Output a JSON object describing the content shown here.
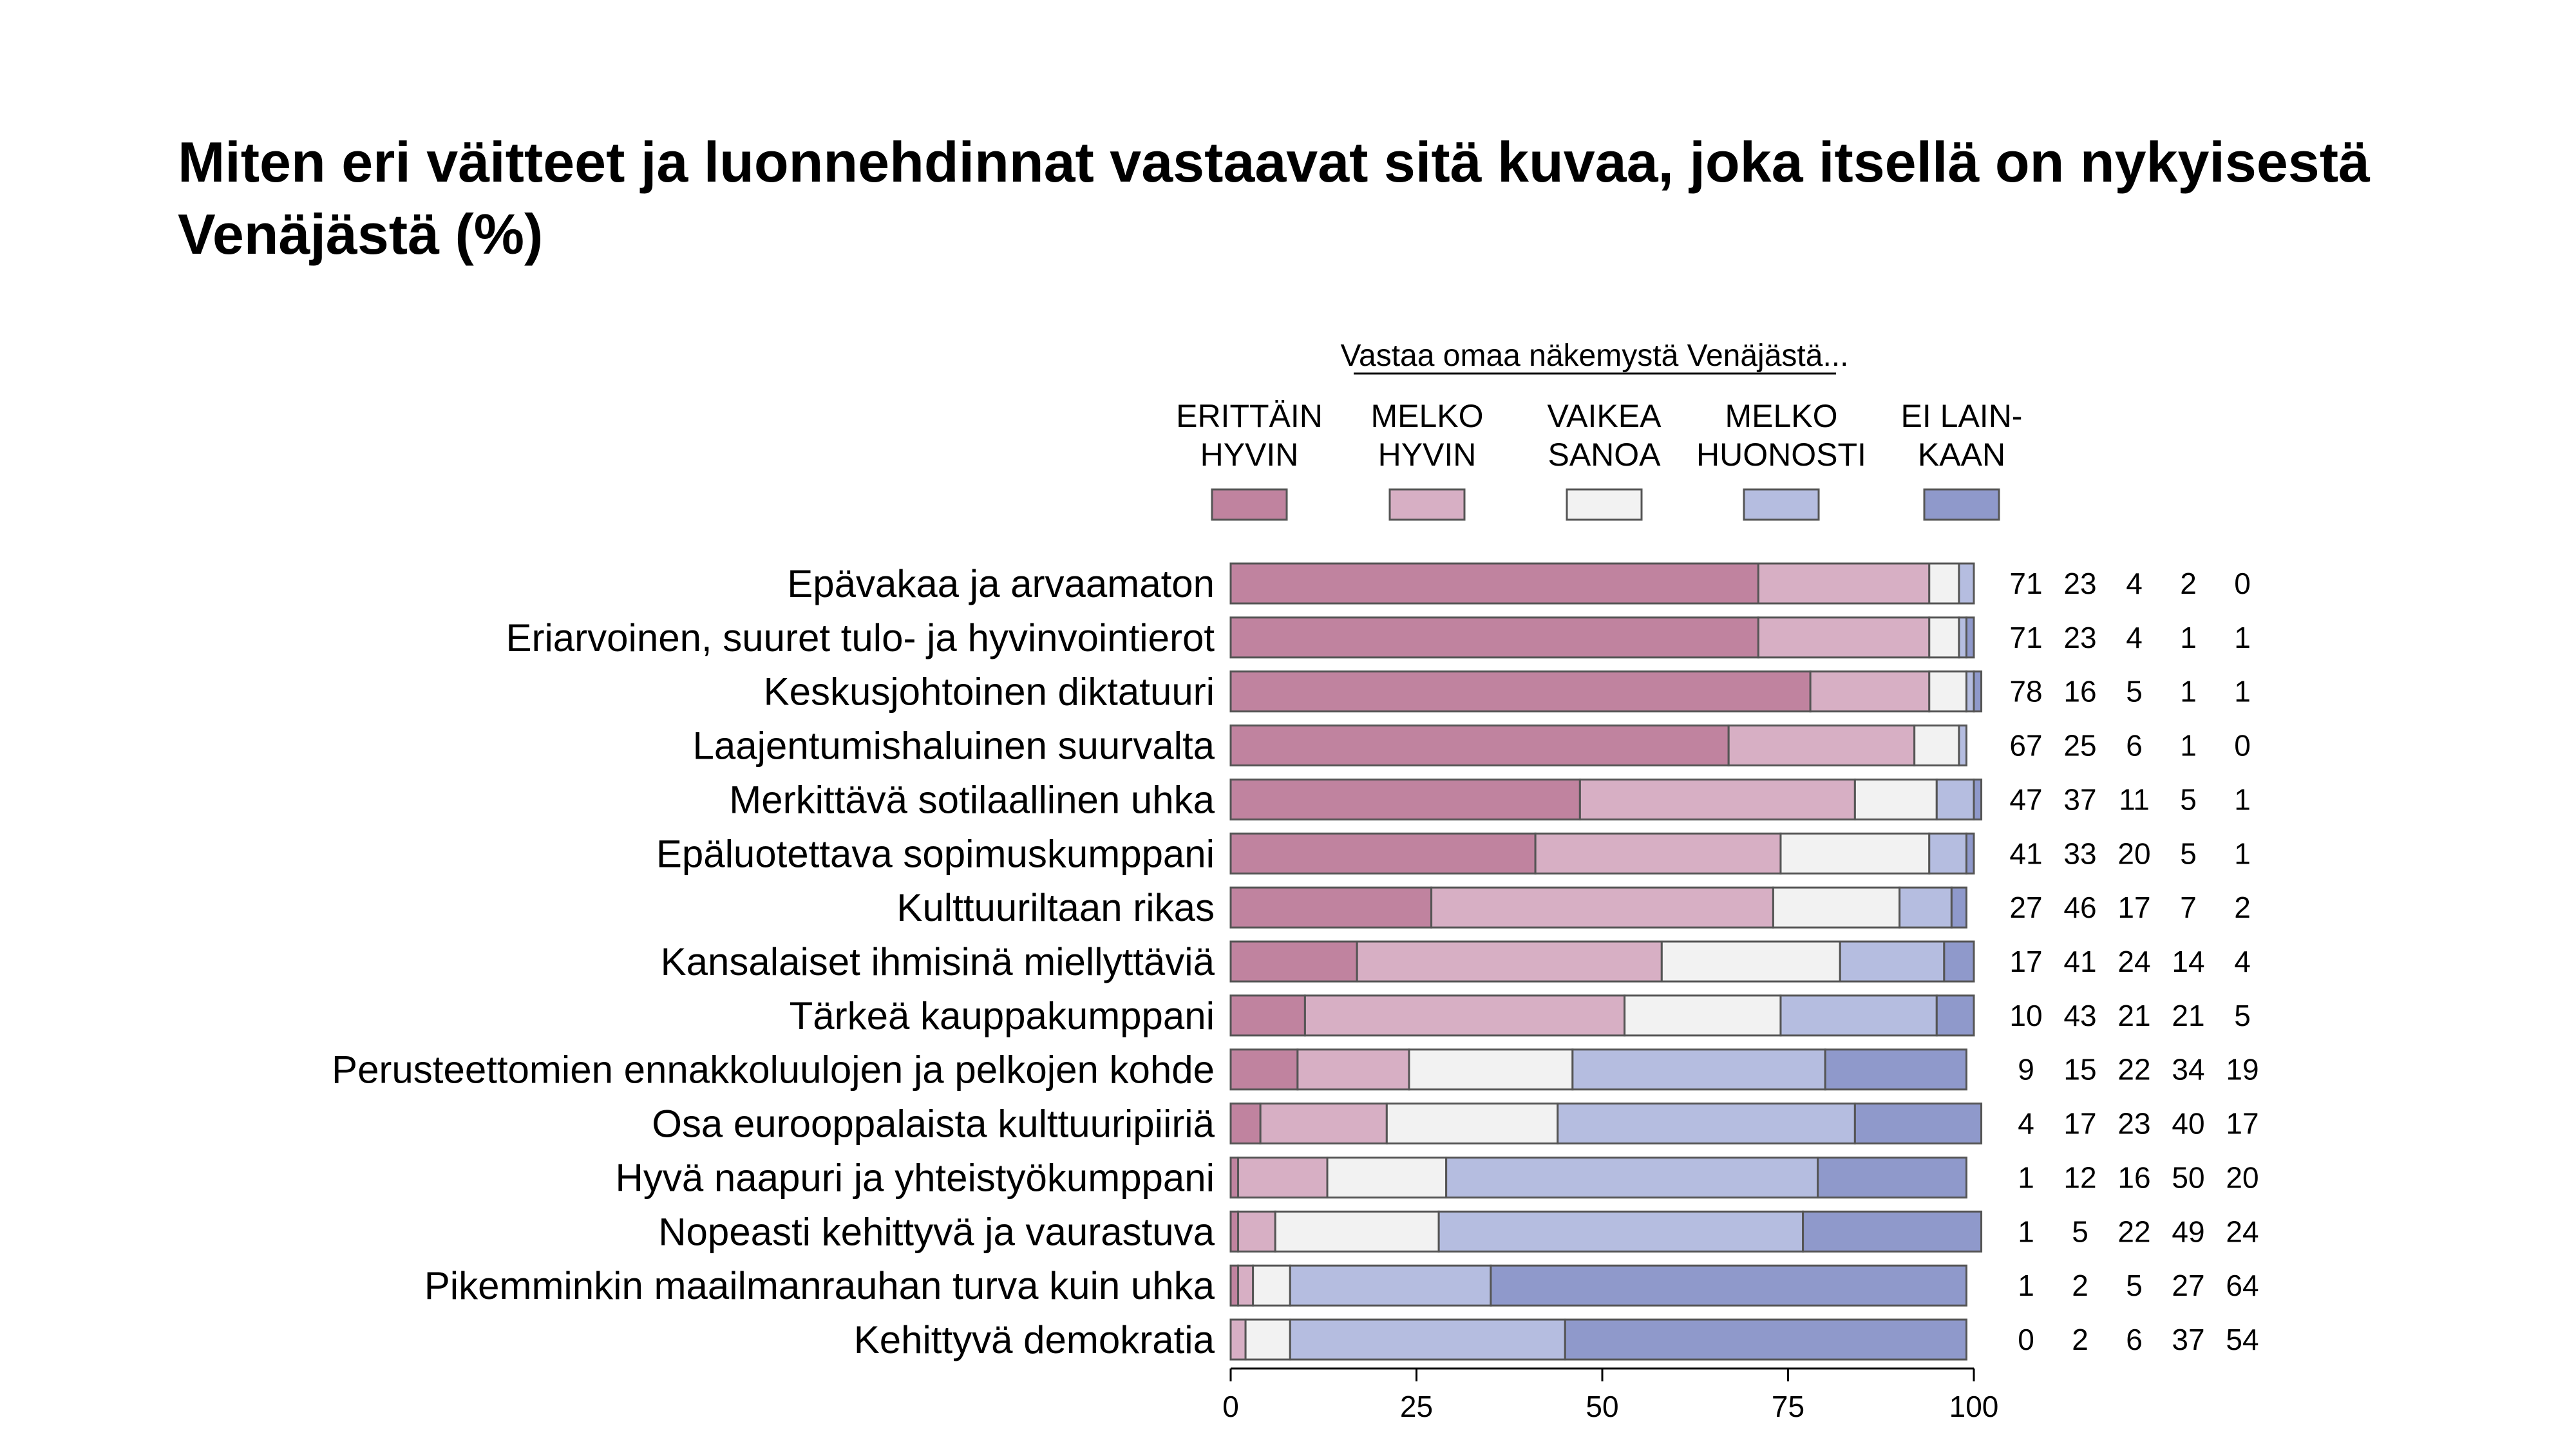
{
  "title": "Miten eri väitteet ja luonnehdinnat vastaavat sitä kuvaa, joka itsellä on nykyisestä Venäjästä (%)",
  "legend_header": "Vastaa omaa näkemystä Venäjästä...",
  "chart_data": {
    "type": "bar",
    "orientation": "horizontal",
    "stacked": true,
    "title": "Miten eri väitteet ja luonnehdinnat vastaavat sitä kuvaa, joka itsellä on nykyisestä Venäjästä (%)",
    "legend_title": "Vastaa omaa näkemystä Venäjästä...",
    "legend_position": "top",
    "xlim": [
      0,
      100
    ],
    "xticks": [
      0,
      25,
      50,
      75,
      100
    ],
    "grid": false,
    "categories": [
      "Epävakaa ja arvaamaton",
      "Eriarvoinen, suuret tulo- ja hyvinvointierot",
      "Keskusjohtoinen diktatuuri",
      "Laajentumishaluinen suurvalta",
      "Merkittävä sotilaallinen uhka",
      "Epäluotettava sopimuskumppani",
      "Kulttuuriltaan rikas",
      "Kansalaiset ihmisinä miellyttäviä",
      "Tärkeä kauppakumppani",
      "Perusteettomien ennakkoluulojen ja pelkojen kohde",
      "Osa eurooppalaista kulttuuripiiriä",
      "Hyvä naapuri ja yhteistyökumppani",
      "Nopeasti kehittyvä ja vaurastuva",
      "Pikemminkin maailmanrauhan turva kuin uhka",
      "Kehittyvä demokratia"
    ],
    "series": [
      {
        "name": "ERITTÄIN HYVIN",
        "legend_lines": [
          "ERITTÄIN",
          "HYVIN"
        ],
        "color": "#c0839f",
        "values": [
          71,
          71,
          78,
          67,
          47,
          41,
          27,
          17,
          10,
          9,
          4,
          1,
          1,
          1,
          0
        ]
      },
      {
        "name": "MELKO HYVIN",
        "legend_lines": [
          "MELKO",
          "HYVIN"
        ],
        "color": "#d7afc4",
        "values": [
          23,
          23,
          16,
          25,
          37,
          33,
          46,
          41,
          43,
          15,
          17,
          12,
          5,
          2,
          2
        ]
      },
      {
        "name": "VAIKEA SANOA",
        "legend_lines": [
          "VAIKEA",
          "SANOA"
        ],
        "color": "#f2f2f2",
        "values": [
          4,
          4,
          5,
          6,
          11,
          20,
          17,
          24,
          21,
          22,
          23,
          16,
          22,
          5,
          6
        ]
      },
      {
        "name": "MELKO HUONOSTI",
        "legend_lines": [
          "MELKO",
          "HUONOSTI"
        ],
        "color": "#b5bde0",
        "values": [
          2,
          1,
          1,
          1,
          5,
          5,
          7,
          14,
          21,
          34,
          40,
          50,
          49,
          27,
          37
        ]
      },
      {
        "name": "EI LAINKAAN",
        "legend_lines": [
          "EI LAIN-",
          "KAAN"
        ],
        "color": "#8f99cb",
        "values": [
          0,
          1,
          1,
          0,
          1,
          1,
          2,
          4,
          5,
          19,
          17,
          20,
          24,
          64,
          54
        ]
      }
    ]
  }
}
